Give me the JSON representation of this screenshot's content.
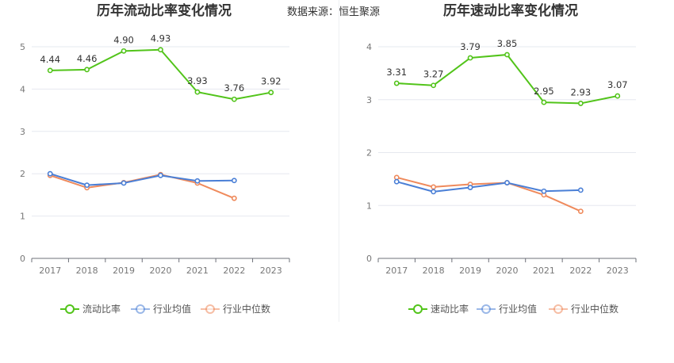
{
  "source_text": "数据来源：恒生聚源",
  "colors": {
    "company": "#52c41a",
    "industry_avg": "#4a7fd6",
    "industry_median": "#ef8a5c"
  },
  "chart_data": [
    {
      "type": "line",
      "title": "历年流动比率变化情况",
      "x": [
        "2017",
        "2018",
        "2019",
        "2020",
        "2021",
        "2022",
        "2023"
      ],
      "ylim": [
        0,
        5
      ],
      "yticks": [
        "0",
        "1",
        "2",
        "3",
        "4",
        "5"
      ],
      "grid": true,
      "legend_position": "bottom",
      "series": [
        {
          "name": "流动比率",
          "values": [
            4.44,
            4.46,
            4.9,
            4.93,
            3.93,
            3.76,
            3.92
          ],
          "labels": [
            "4.44",
            "4.46",
            "4.90",
            "4.93",
            "3.93",
            "3.76",
            "3.92"
          ]
        },
        {
          "name": "行业均值",
          "values": [
            2.0,
            1.73,
            1.78,
            1.96,
            1.83,
            1.84,
            null
          ]
        },
        {
          "name": "行业中位数",
          "values": [
            1.96,
            1.67,
            1.79,
            1.98,
            1.78,
            1.42,
            null
          ]
        }
      ]
    },
    {
      "type": "line",
      "title": "历年速动比率变化情况",
      "x": [
        "2017",
        "2018",
        "2019",
        "2020",
        "2021",
        "2022",
        "2023"
      ],
      "ylim": [
        0,
        4
      ],
      "yticks": [
        "0",
        "1",
        "2",
        "3",
        "4"
      ],
      "grid": true,
      "legend_position": "bottom",
      "series": [
        {
          "name": "速动比率",
          "values": [
            3.31,
            3.27,
            3.79,
            3.85,
            2.95,
            2.93,
            3.07
          ],
          "labels": [
            "3.31",
            "3.27",
            "3.79",
            "3.85",
            "2.95",
            "2.93",
            "3.07"
          ]
        },
        {
          "name": "行业均值",
          "values": [
            1.45,
            1.26,
            1.34,
            1.43,
            1.27,
            1.29,
            null
          ]
        },
        {
          "name": "行业中位数",
          "values": [
            1.53,
            1.35,
            1.4,
            1.43,
            1.2,
            0.89,
            null
          ]
        }
      ]
    }
  ]
}
